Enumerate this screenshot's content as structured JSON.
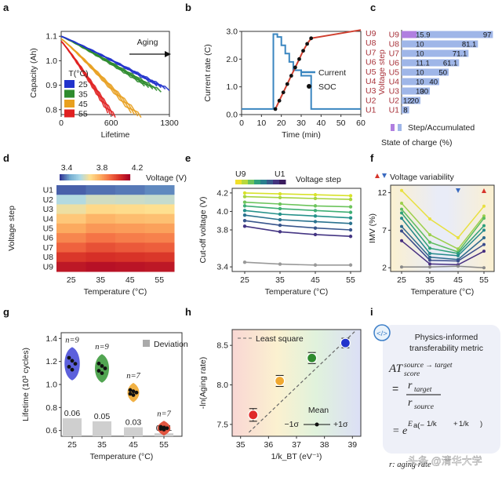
{
  "colors": {
    "c25": "#2233cc",
    "c35": "#2e8b2e",
    "c45": "#e8a020",
    "c55": "#e02020",
    "accent_red": "#a8323a",
    "step_bar": "#9fb6e8",
    "step_purple": "#b07fe0",
    "soc_line": "#d04030",
    "current_line": "#3a86c0"
  },
  "panel_labels": [
    "a",
    "b",
    "c",
    "d",
    "e",
    "f",
    "g",
    "h",
    "i"
  ],
  "chart_data": [
    {
      "id": "a",
      "type": "line",
      "xlabel": "Lifetime",
      "ylabel": "Capacity (Ah)",
      "xlim": [
        0,
        1300
      ],
      "ylim": [
        0.78,
        1.12
      ],
      "xticks": [
        "0",
        "600",
        "1300"
      ],
      "yticks": [
        "0.8",
        "0.9",
        "1.0",
        "1.1"
      ],
      "annotation": "Aging",
      "legend": {
        "title": "T(°C)",
        "entries": [
          "25",
          "35",
          "45",
          "55"
        ]
      },
      "series": [
        {
          "name": "25",
          "end_lifetime": [
            1150,
            1200,
            1250,
            1300
          ],
          "start": 1.1,
          "end": 0.9
        },
        {
          "name": "35",
          "end_lifetime": [
            1000,
            1050,
            1100,
            1150,
            1200
          ],
          "start": 1.1,
          "end": 0.9
        },
        {
          "name": "45",
          "end_lifetime": [
            840,
            880,
            920,
            960
          ],
          "start": 1.09,
          "end": 0.79
        },
        {
          "name": "55",
          "end_lifetime": [
            560,
            590,
            620,
            650
          ],
          "start": 1.08,
          "end": 0.79
        }
      ]
    },
    {
      "id": "b",
      "type": "line",
      "xlabel": "Time (min)",
      "ylabel": "Current rate (C)",
      "xlim": [
        0,
        60
      ],
      "ylim": [
        0,
        3
      ],
      "xticks": [
        "0",
        "10",
        "20",
        "30",
        "40",
        "50",
        "60"
      ],
      "yticks": [
        "0.0",
        "1.0",
        "2.0",
        "3.0"
      ],
      "legend": [
        "Current",
        "SOC"
      ],
      "right_labels": [
        "U9",
        "U8",
        "U7",
        "U6",
        "U5",
        "U4",
        "U3",
        "U2",
        "U1"
      ],
      "current": {
        "x": [
          0,
          16,
          16,
          18,
          18,
          20,
          20,
          22,
          22,
          24,
          24,
          26,
          26,
          30,
          30,
          35,
          35,
          60
        ],
        "y": [
          0.2,
          0.2,
          2.9,
          2.9,
          2.8,
          2.8,
          2.5,
          2.5,
          2.2,
          2.2,
          1.9,
          1.9,
          1.6,
          1.6,
          1.4,
          1.4,
          0.2,
          0.2
        ]
      },
      "soc": {
        "x": [
          17,
          19,
          21,
          23,
          25,
          27,
          29,
          31,
          33,
          35,
          60
        ],
        "y": [
          0.2,
          0.5,
          0.8,
          1.1,
          1.4,
          1.7,
          2.0,
          2.3,
          2.55,
          2.75,
          3.05
        ]
      }
    },
    {
      "id": "c",
      "type": "bar",
      "ylabel": "Voltage step",
      "xlabel": "State of charge (%)",
      "legend": "Step/Accumulated",
      "categories": [
        "U9",
        "U8",
        "U7",
        "U6",
        "U5",
        "U4",
        "U3",
        "U2",
        "U1"
      ],
      "step": [
        "15.9",
        "10",
        "10",
        "11.1",
        "10",
        "10",
        "10",
        "12",
        ""
      ],
      "accumulated": [
        "97",
        "81.1",
        "71.1",
        "61.1",
        "50",
        "40",
        "30",
        "20",
        "8"
      ]
    },
    {
      "id": "d",
      "type": "heatmap",
      "ylabel": "Voltage step",
      "xlabel": "Temperature (°C)",
      "colorbar": {
        "label": "Voltage (V)",
        "ticks": [
          "3.4",
          "3.8",
          "4.2"
        ]
      },
      "rows": [
        "U1",
        "U2",
        "U3",
        "U4",
        "U5",
        "U6",
        "U7",
        "U8",
        "U9"
      ],
      "columns": [
        "25",
        "35",
        "45",
        "55"
      ]
    },
    {
      "id": "e",
      "type": "line",
      "xlabel": "Temperature (°C)",
      "ylabel": "Cut-off voltage (V)",
      "legend": {
        "from": "U9",
        "to": "U1",
        "label": "Voltage step"
      },
      "x": [
        "25",
        "35",
        "45",
        "55"
      ],
      "yticks": [
        "3.4",
        "3.8",
        "4.0",
        "4.2"
      ],
      "ylim": [
        3.35,
        4.25
      ],
      "series": [
        {
          "name": "U9",
          "values": [
            4.2,
            4.19,
            4.18,
            4.17
          ]
        },
        {
          "name": "U8",
          "values": [
            4.16,
            4.15,
            4.14,
            4.13
          ]
        },
        {
          "name": "U7",
          "values": [
            4.1,
            4.08,
            4.06,
            4.05
          ]
        },
        {
          "name": "U6",
          "values": [
            4.06,
            4.03,
            4.01,
            3.99
          ]
        },
        {
          "name": "U5",
          "values": [
            4.01,
            3.97,
            3.95,
            3.93
          ]
        },
        {
          "name": "U4",
          "values": [
            3.96,
            3.91,
            3.89,
            3.87
          ]
        },
        {
          "name": "U3",
          "values": [
            3.9,
            3.85,
            3.82,
            3.8
          ]
        },
        {
          "name": "U2",
          "values": [
            3.84,
            3.78,
            3.75,
            3.73
          ]
        },
        {
          "name": "U1",
          "values": [
            3.45,
            3.43,
            3.42,
            3.42
          ]
        }
      ]
    },
    {
      "id": "f",
      "type": "line",
      "xlabel": "Temperature (°C)",
      "ylabel": "IMV (%)",
      "legend": "Voltage variability",
      "x": [
        "25",
        "35",
        "45",
        "55"
      ],
      "yticks": [
        "2",
        "7",
        "12"
      ],
      "ylim": [
        1.5,
        13
      ],
      "series": [
        {
          "name": "U9",
          "values": [
            12.3,
            8.5,
            6.0,
            10.2
          ]
        },
        {
          "name": "U8",
          "values": [
            10.6,
            6.4,
            4.5,
            8.9
          ]
        },
        {
          "name": "U7",
          "values": [
            9.8,
            5.4,
            4.1,
            8.6
          ]
        },
        {
          "name": "U6",
          "values": [
            9.3,
            4.6,
            3.9,
            7.6
          ]
        },
        {
          "name": "U5",
          "values": [
            8.6,
            3.9,
            3.6,
            7.0
          ]
        },
        {
          "name": "U4",
          "values": [
            7.5,
            3.4,
            3.1,
            6.0
          ]
        },
        {
          "name": "U3",
          "values": [
            6.9,
            3.0,
            2.9,
            5.1
          ]
        },
        {
          "name": "U2",
          "values": [
            5.6,
            2.5,
            2.4,
            4.2
          ]
        },
        {
          "name": "U1",
          "values": [
            2.1,
            2.1,
            2.2,
            2.0
          ]
        }
      ]
    },
    {
      "id": "g",
      "type": "bar",
      "xlabel": "Temperature (°C)",
      "ylabel": "Lifetime (10³ cycles)",
      "legend": "Deviation",
      "categories": [
        "25",
        "35",
        "45",
        "55"
      ],
      "deviation": [
        0.06,
        0.05,
        0.03,
        0.01
      ],
      "deviation_labels": [
        "0.06",
        "0.05",
        "0.03",
        "0.01"
      ],
      "n_labels": [
        "n=9",
        "n=9",
        "n=7",
        "n=7"
      ],
      "mean_lifetime": [
        1.18,
        1.14,
        0.93,
        0.62
      ],
      "yticks": [
        "0.6",
        "0.8",
        "1.0",
        "1.2",
        "1.4"
      ],
      "ylim": [
        0.55,
        1.45
      ]
    },
    {
      "id": "h",
      "type": "scatter",
      "xlabel": "1/k_BT (eV⁻¹)",
      "ylabel": "-ln(Aging rate)",
      "legend": "Least square",
      "mean_legend": {
        "title": "Mean",
        "left": "−1σ",
        "right": "+1σ"
      },
      "xticks": [
        "35",
        "36",
        "37",
        "38",
        "39"
      ],
      "yticks": [
        "7.5",
        "8.0",
        "8.5"
      ],
      "xlim": [
        34.7,
        39.3
      ],
      "ylim": [
        7.35,
        8.7
      ],
      "points": [
        {
          "x": 35.45,
          "y": 7.62,
          "err": 0.08
        },
        {
          "x": 36.4,
          "y": 8.05,
          "err": 0.07
        },
        {
          "x": 37.55,
          "y": 8.34,
          "err": 0.07
        },
        {
          "x": 38.75,
          "y": 8.53,
          "err": 0.06
        }
      ]
    }
  ],
  "panel_i": {
    "title_line1": "Physics-informed",
    "title_line2": "transferability metric",
    "metric_label": "AT",
    "metric_sup": "source → target",
    "metric_sub": "score",
    "eq1_num": "r",
    "eq1_num_sub": "target",
    "eq1_den": "r",
    "eq1_den_sub": "source",
    "eq2": "= e",
    "exp_text": "E",
    "footnote": "r: aging rate"
  },
  "watermark": "头条 @清华大学"
}
